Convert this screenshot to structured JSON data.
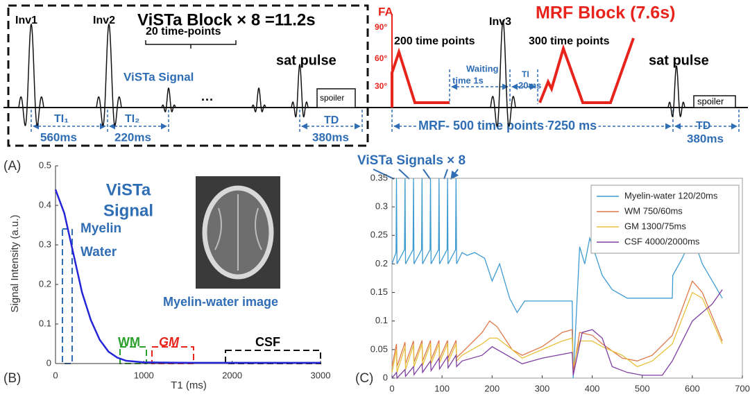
{
  "panel_a": {
    "label": "(A)",
    "vista_block": "ViSTa Block × 8 =11.2s",
    "mrf_block": "MRF Block (7.6s)",
    "inv1": "Inv1",
    "inv2": "Inv2",
    "inv3": "Inv3",
    "time_points_20": "20 time-points",
    "vista_signal": "ViSTa Signal",
    "ellipsis": "···",
    "sat_pulse_1": "sat pulse",
    "sat_pulse_2": "sat pulse",
    "spoiler_1": "spoiler",
    "spoiler_2": "spoiler",
    "fa": "FA",
    "fa_90": "90°",
    "fa_60": "60°",
    "fa_30": "30°",
    "time_points_200": "200 time points",
    "time_points_300": "300 time points",
    "waiting": [
      "Waiting",
      "time 1s"
    ],
    "ti_20": [
      "TI",
      "20ms"
    ],
    "ti1": "TI₁",
    "ti1_value": "560ms",
    "ti2": "TI₂",
    "ti2_value": "220ms",
    "td_1": "TD",
    "td_1_value": "380ms",
    "td_2": "TD",
    "td_2_value": "380ms",
    "mrf_span": "MRF- 500 time points 7250 ms"
  },
  "chart_data": [
    {
      "type": "line",
      "panel_label": "(B)",
      "title": [
        "ViSTa",
        "Signal"
      ],
      "xlabel": "T1 (ms)",
      "ylabel": "Signal Intensity  (a.u.)",
      "x": [
        0,
        100,
        200,
        300,
        400,
        500,
        600,
        700,
        800,
        1000,
        1500,
        2000,
        2500,
        3000
      ],
      "series": [
        {
          "color": "#2424d8",
          "values": [
            0.44,
            0.38,
            0.28,
            0.18,
            0.11,
            0.06,
            0.03,
            0.015,
            0.007,
            0.003,
            0.002,
            0.002,
            0.002,
            0.002
          ]
        }
      ],
      "xlim": [
        0,
        3000
      ],
      "xticks": [
        0,
        1000,
        2000,
        3000
      ],
      "ylim": [
        0,
        0.5
      ],
      "yticks": [
        0,
        0.1,
        0.2,
        0.3,
        0.4,
        0.5
      ],
      "annotations": {
        "myelin_water": [
          "Myelin",
          "Water"
        ],
        "wm": "WM",
        "gm": "GM",
        "csf": "CSF",
        "image_caption": "Myelin-water image"
      }
    },
    {
      "type": "line",
      "panel_label": "(C)",
      "annotation": "ViSTa Signals × 8",
      "legend": "upper right",
      "xlim": [
        0,
        700
      ],
      "xticks": [
        0,
        100,
        200,
        300,
        400,
        500,
        600,
        700
      ],
      "ylim": [
        0,
        0.35
      ],
      "yticks": [
        0,
        0.05,
        0.1,
        0.15,
        0.2,
        0.25,
        0.3,
        0.35
      ],
      "series": [
        {
          "name": "Myelin-water 120/20ms",
          "color": "#3d9bd2",
          "x": [
            0,
            8,
            9,
            10,
            25,
            26,
            27,
            42,
            43,
            44,
            59,
            60,
            61,
            76,
            77,
            78,
            93,
            94,
            95,
            110,
            111,
            112,
            127,
            128,
            129,
            140,
            150,
            165,
            175,
            185,
            200,
            215,
            235,
            250,
            265,
            300,
            360,
            362,
            375,
            385,
            395,
            405,
            420,
            440,
            470,
            560,
            561,
            580,
            600,
            620,
            640,
            660
          ],
          "values": [
            0.2,
            0.22,
            0.35,
            0.2,
            0.225,
            0.35,
            0.2,
            0.225,
            0.35,
            0.2,
            0.225,
            0.35,
            0.2,
            0.225,
            0.35,
            0.2,
            0.225,
            0.35,
            0.2,
            0.225,
            0.35,
            0.2,
            0.225,
            0.35,
            0.2,
            0.22,
            0.215,
            0.22,
            0.215,
            0.21,
            0.17,
            0.2,
            0.14,
            0.115,
            0.135,
            0.135,
            0.135,
            0,
            0.23,
            0.2,
            0.245,
            0.22,
            0.18,
            0.155,
            0.14,
            0.14,
            0.18,
            0.21,
            0.25,
            0.2,
            0.17,
            0.14
          ]
        },
        {
          "name": "WM 750/60ms",
          "color": "#e07848",
          "x": [
            0,
            9,
            10,
            26,
            27,
            43,
            44,
            60,
            61,
            77,
            78,
            94,
            95,
            111,
            112,
            128,
            129,
            140,
            180,
            195,
            210,
            240,
            260,
            300,
            340,
            360,
            362,
            375,
            400,
            420,
            460,
            490,
            520,
            560,
            600,
            620,
            660
          ],
          "values": [
            0.02,
            0.06,
            0.02,
            0.063,
            0.025,
            0.065,
            0.028,
            0.066,
            0.03,
            0.066,
            0.032,
            0.066,
            0.034,
            0.066,
            0.035,
            0.066,
            0.036,
            0.045,
            0.08,
            0.1,
            0.09,
            0.05,
            0.04,
            0.055,
            0.08,
            0.085,
            0.01,
            0.08,
            0.075,
            0.06,
            0.035,
            0.03,
            0.04,
            0.075,
            0.17,
            0.15,
            0.065
          ]
        },
        {
          "name": "GM 1300/75ms",
          "color": "#e8c03a",
          "x": [
            0,
            9,
            10,
            26,
            27,
            43,
            44,
            60,
            61,
            77,
            78,
            94,
            95,
            111,
            112,
            128,
            129,
            140,
            180,
            195,
            210,
            240,
            260,
            300,
            340,
            360,
            362,
            375,
            400,
            420,
            460,
            490,
            520,
            560,
            600,
            620,
            660
          ],
          "values": [
            0.01,
            0.05,
            0.01,
            0.055,
            0.015,
            0.058,
            0.02,
            0.06,
            0.022,
            0.06,
            0.025,
            0.06,
            0.027,
            0.06,
            0.028,
            0.06,
            0.03,
            0.04,
            0.06,
            0.07,
            0.07,
            0.05,
            0.035,
            0.05,
            0.065,
            0.07,
            0.02,
            0.065,
            0.065,
            0.055,
            0.04,
            0.02,
            0.03,
            0.06,
            0.15,
            0.14,
            0.06
          ]
        },
        {
          "name": "CSF 4000/2000ms",
          "color": "#7e3ea2",
          "x": [
            0,
            9,
            10,
            26,
            27,
            43,
            44,
            60,
            61,
            77,
            78,
            94,
            95,
            111,
            112,
            128,
            129,
            140,
            180,
            200,
            240,
            260,
            300,
            360,
            362,
            380,
            400,
            420,
            440,
            470,
            500,
            540,
            560,
            600,
            640,
            660
          ],
          "values": [
            0,
            0.01,
            0,
            0.015,
            0.003,
            0.02,
            0.006,
            0.025,
            0.01,
            0.03,
            0.013,
            0.035,
            0.016,
            0.038,
            0.018,
            0.04,
            0.02,
            0.03,
            0.04,
            0.055,
            0.035,
            0.025,
            0.035,
            0.045,
            0.005,
            0.08,
            0.085,
            0.07,
            0.02,
            0.01,
            0.005,
            0.005,
            0.03,
            0.1,
            0.13,
            0.155
          ]
        }
      ]
    }
  ]
}
